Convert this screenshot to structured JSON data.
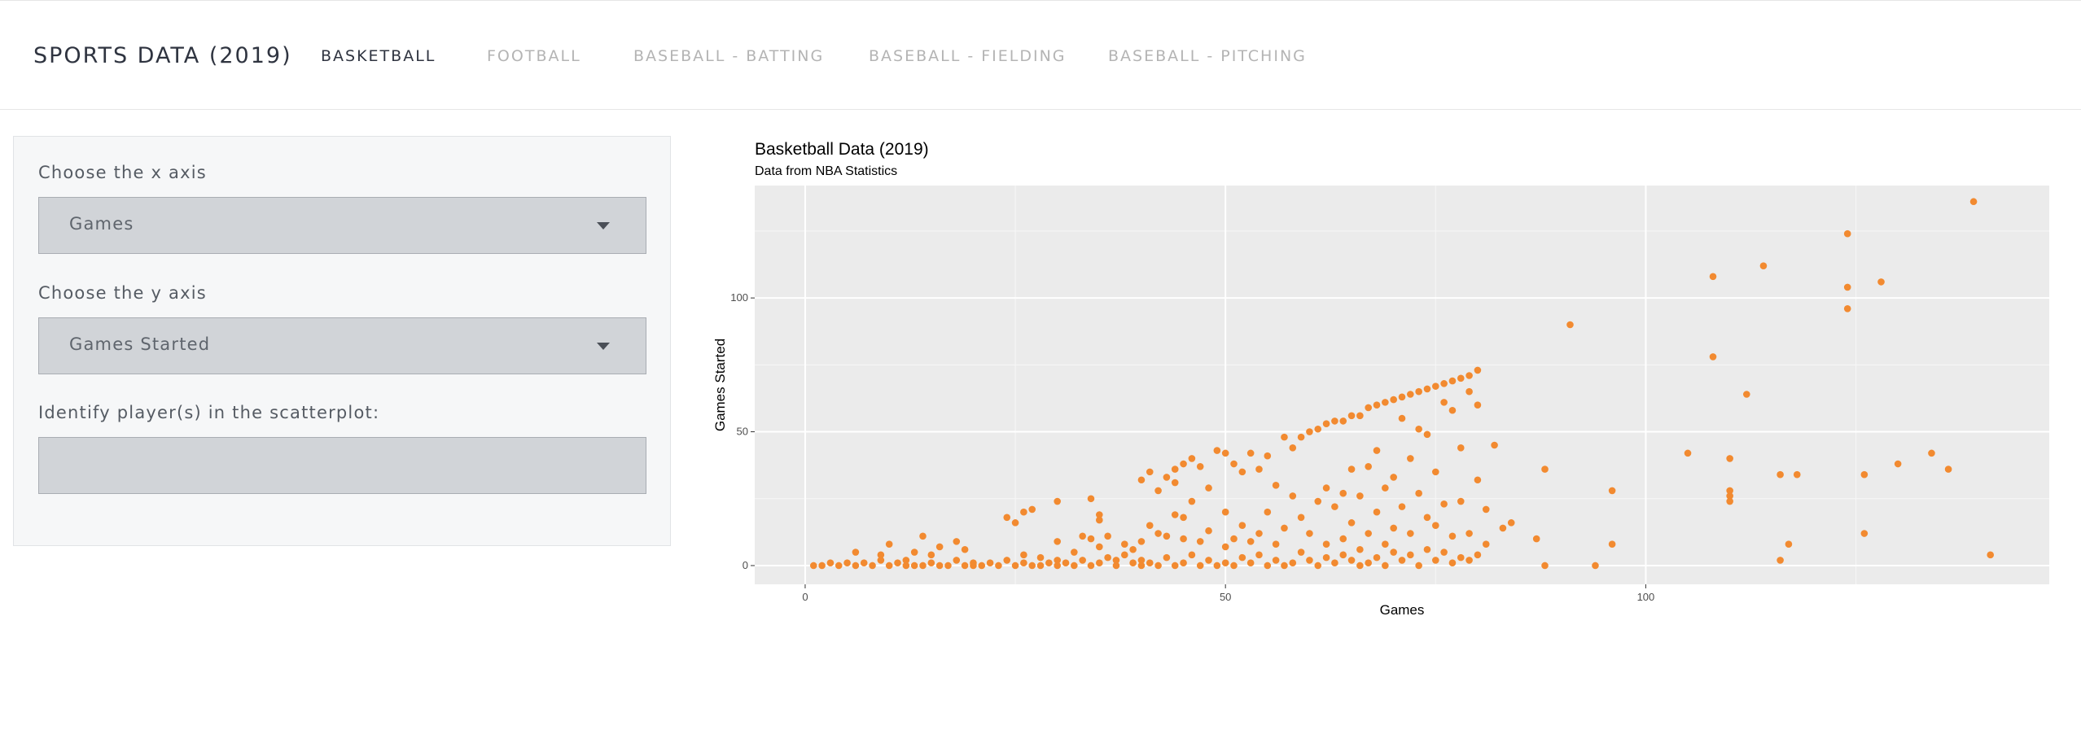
{
  "app": {
    "title": "SPORTS DATA (2019)"
  },
  "nav": {
    "tabs": [
      {
        "label": "BASKETBALL",
        "active": true
      },
      {
        "label": "FOOTBALL",
        "active": false
      },
      {
        "label": "BASEBALL - BATTING",
        "active": false
      },
      {
        "label": "BASEBALL - FIELDING",
        "active": false
      },
      {
        "label": "BASEBALL - PITCHING",
        "active": false
      }
    ]
  },
  "controls": {
    "x_axis_label": "Choose the x axis",
    "x_axis_value": "Games",
    "y_axis_label": "Choose the y axis",
    "y_axis_value": "Games Started",
    "identify_label": "Identify player(s) in the scatterplot:",
    "identify_value": ""
  },
  "colors": {
    "point": "#f28a30",
    "panel_bg": "#ebebeb",
    "grid": "#ffffff"
  },
  "chart_data": {
    "type": "scatter",
    "title": "Basketball Data (2019)",
    "subtitle": "Data from NBA Statistics",
    "xlabel": "Games",
    "ylabel": "Games Started",
    "xlim": [
      -6,
      148
    ],
    "ylim": [
      -7,
      142
    ],
    "xticks": [
      0,
      50,
      100
    ],
    "yticks": [
      0,
      50,
      100
    ],
    "grid": true,
    "points": [
      [
        1,
        0
      ],
      [
        2,
        0
      ],
      [
        3,
        1
      ],
      [
        4,
        0
      ],
      [
        5,
        1
      ],
      [
        6,
        0
      ],
      [
        6,
        5
      ],
      [
        7,
        1
      ],
      [
        8,
        0
      ],
      [
        9,
        2
      ],
      [
        9,
        4
      ],
      [
        10,
        0
      ],
      [
        10,
        8
      ],
      [
        11,
        1
      ],
      [
        12,
        0
      ],
      [
        12,
        2
      ],
      [
        13,
        0
      ],
      [
        13,
        5
      ],
      [
        14,
        0
      ],
      [
        14,
        11
      ],
      [
        15,
        1
      ],
      [
        15,
        4
      ],
      [
        16,
        0
      ],
      [
        16,
        7
      ],
      [
        17,
        0
      ],
      [
        18,
        2
      ],
      [
        18,
        9
      ],
      [
        19,
        0
      ],
      [
        19,
        6
      ],
      [
        20,
        0
      ],
      [
        20,
        1
      ],
      [
        21,
        0
      ],
      [
        22,
        1
      ],
      [
        23,
        0
      ],
      [
        24,
        2
      ],
      [
        24,
        18
      ],
      [
        25,
        0
      ],
      [
        25,
        16
      ],
      [
        26,
        1
      ],
      [
        26,
        4
      ],
      [
        26,
        20
      ],
      [
        27,
        0
      ],
      [
        27,
        21
      ],
      [
        28,
        0
      ],
      [
        28,
        3
      ],
      [
        29,
        1
      ],
      [
        30,
        0
      ],
      [
        30,
        2
      ],
      [
        30,
        9
      ],
      [
        30,
        24
      ],
      [
        31,
        1
      ],
      [
        32,
        0
      ],
      [
        32,
        5
      ],
      [
        33,
        2
      ],
      [
        33,
        11
      ],
      [
        34,
        0
      ],
      [
        34,
        10
      ],
      [
        34,
        25
      ],
      [
        35,
        1
      ],
      [
        35,
        7
      ],
      [
        35,
        17
      ],
      [
        35,
        19
      ],
      [
        36,
        3
      ],
      [
        36,
        11
      ],
      [
        37,
        0
      ],
      [
        37,
        2
      ],
      [
        38,
        4
      ],
      [
        38,
        8
      ],
      [
        39,
        1
      ],
      [
        39,
        6
      ],
      [
        40,
        0
      ],
      [
        40,
        2
      ],
      [
        40,
        9
      ],
      [
        40,
        32
      ],
      [
        41,
        1
      ],
      [
        41,
        15
      ],
      [
        41,
        35
      ],
      [
        42,
        0
      ],
      [
        42,
        12
      ],
      [
        42,
        28
      ],
      [
        43,
        3
      ],
      [
        43,
        11
      ],
      [
        43,
        33
      ],
      [
        44,
        0
      ],
      [
        44,
        19
      ],
      [
        44,
        31
      ],
      [
        44,
        36
      ],
      [
        45,
        1
      ],
      [
        45,
        10
      ],
      [
        45,
        18
      ],
      [
        45,
        38
      ],
      [
        46,
        4
      ],
      [
        46,
        24
      ],
      [
        46,
        40
      ],
      [
        47,
        0
      ],
      [
        47,
        9
      ],
      [
        47,
        37
      ],
      [
        48,
        2
      ],
      [
        48,
        13
      ],
      [
        48,
        29
      ],
      [
        49,
        0
      ],
      [
        49,
        43
      ],
      [
        50,
        1
      ],
      [
        50,
        7
      ],
      [
        50,
        20
      ],
      [
        50,
        42
      ],
      [
        51,
        0
      ],
      [
        51,
        10
      ],
      [
        51,
        38
      ],
      [
        52,
        3
      ],
      [
        52,
        15
      ],
      [
        52,
        35
      ],
      [
        53,
        1
      ],
      [
        53,
        9
      ],
      [
        53,
        42
      ],
      [
        54,
        4
      ],
      [
        54,
        12
      ],
      [
        54,
        36
      ],
      [
        55,
        0
      ],
      [
        55,
        20
      ],
      [
        55,
        41
      ],
      [
        56,
        2
      ],
      [
        56,
        8
      ],
      [
        56,
        30
      ],
      [
        57,
        0
      ],
      [
        57,
        14
      ],
      [
        57,
        48
      ],
      [
        58,
        1
      ],
      [
        58,
        26
      ],
      [
        58,
        44
      ],
      [
        59,
        5
      ],
      [
        59,
        18
      ],
      [
        59,
        48
      ],
      [
        60,
        2
      ],
      [
        60,
        12
      ],
      [
        60,
        50
      ],
      [
        61,
        0
      ],
      [
        61,
        24
      ],
      [
        61,
        51
      ],
      [
        62,
        3
      ],
      [
        62,
        8
      ],
      [
        62,
        29
      ],
      [
        62,
        53
      ],
      [
        63,
        1
      ],
      [
        63,
        22
      ],
      [
        63,
        54
      ],
      [
        64,
        4
      ],
      [
        64,
        10
      ],
      [
        64,
        27
      ],
      [
        64,
        54
      ],
      [
        65,
        2
      ],
      [
        65,
        16
      ],
      [
        65,
        36
      ],
      [
        65,
        56
      ],
      [
        66,
        0
      ],
      [
        66,
        6
      ],
      [
        66,
        26
      ],
      [
        66,
        56
      ],
      [
        67,
        1
      ],
      [
        67,
        12
      ],
      [
        67,
        37
      ],
      [
        67,
        59
      ],
      [
        68,
        3
      ],
      [
        68,
        20
      ],
      [
        68,
        43
      ],
      [
        68,
        60
      ],
      [
        69,
        0
      ],
      [
        69,
        8
      ],
      [
        69,
        29
      ],
      [
        69,
        61
      ],
      [
        70,
        5
      ],
      [
        70,
        14
      ],
      [
        70,
        33
      ],
      [
        70,
        62
      ],
      [
        71,
        2
      ],
      [
        71,
        22
      ],
      [
        71,
        55
      ],
      [
        71,
        63
      ],
      [
        72,
        4
      ],
      [
        72,
        12
      ],
      [
        72,
        40
      ],
      [
        72,
        64
      ],
      [
        73,
        0
      ],
      [
        73,
        27
      ],
      [
        73,
        51
      ],
      [
        73,
        65
      ],
      [
        74,
        6
      ],
      [
        74,
        18
      ],
      [
        74,
        49
      ],
      [
        74,
        66
      ],
      [
        75,
        2
      ],
      [
        75,
        15
      ],
      [
        75,
        35
      ],
      [
        75,
        67
      ],
      [
        76,
        5
      ],
      [
        76,
        23
      ],
      [
        76,
        61
      ],
      [
        76,
        68
      ],
      [
        77,
        1
      ],
      [
        77,
        11
      ],
      [
        77,
        58
      ],
      [
        77,
        69
      ],
      [
        78,
        3
      ],
      [
        78,
        24
      ],
      [
        78,
        44
      ],
      [
        78,
        70
      ],
      [
        79,
        2
      ],
      [
        79,
        12
      ],
      [
        79,
        65
      ],
      [
        79,
        71
      ],
      [
        80,
        4
      ],
      [
        80,
        32
      ],
      [
        80,
        60
      ],
      [
        80,
        73
      ],
      [
        81,
        8
      ],
      [
        81,
        21
      ],
      [
        82,
        45
      ],
      [
        83,
        14
      ],
      [
        84,
        16
      ],
      [
        87,
        10
      ],
      [
        88,
        0
      ],
      [
        88,
        36
      ],
      [
        91,
        90
      ],
      [
        94,
        0
      ],
      [
        96,
        8
      ],
      [
        96,
        28
      ],
      [
        105,
        42
      ],
      [
        108,
        78
      ],
      [
        108,
        108
      ],
      [
        110,
        24
      ],
      [
        110,
        26
      ],
      [
        110,
        28
      ],
      [
        110,
        40
      ],
      [
        112,
        64
      ],
      [
        114,
        112
      ],
      [
        116,
        2
      ],
      [
        116,
        34
      ],
      [
        117,
        8
      ],
      [
        118,
        34
      ],
      [
        124,
        96
      ],
      [
        124,
        104
      ],
      [
        124,
        124
      ],
      [
        126,
        12
      ],
      [
        126,
        34
      ],
      [
        128,
        106
      ],
      [
        130,
        38
      ],
      [
        134,
        42
      ],
      [
        136,
        36
      ],
      [
        139,
        136
      ],
      [
        141,
        4
      ]
    ]
  }
}
